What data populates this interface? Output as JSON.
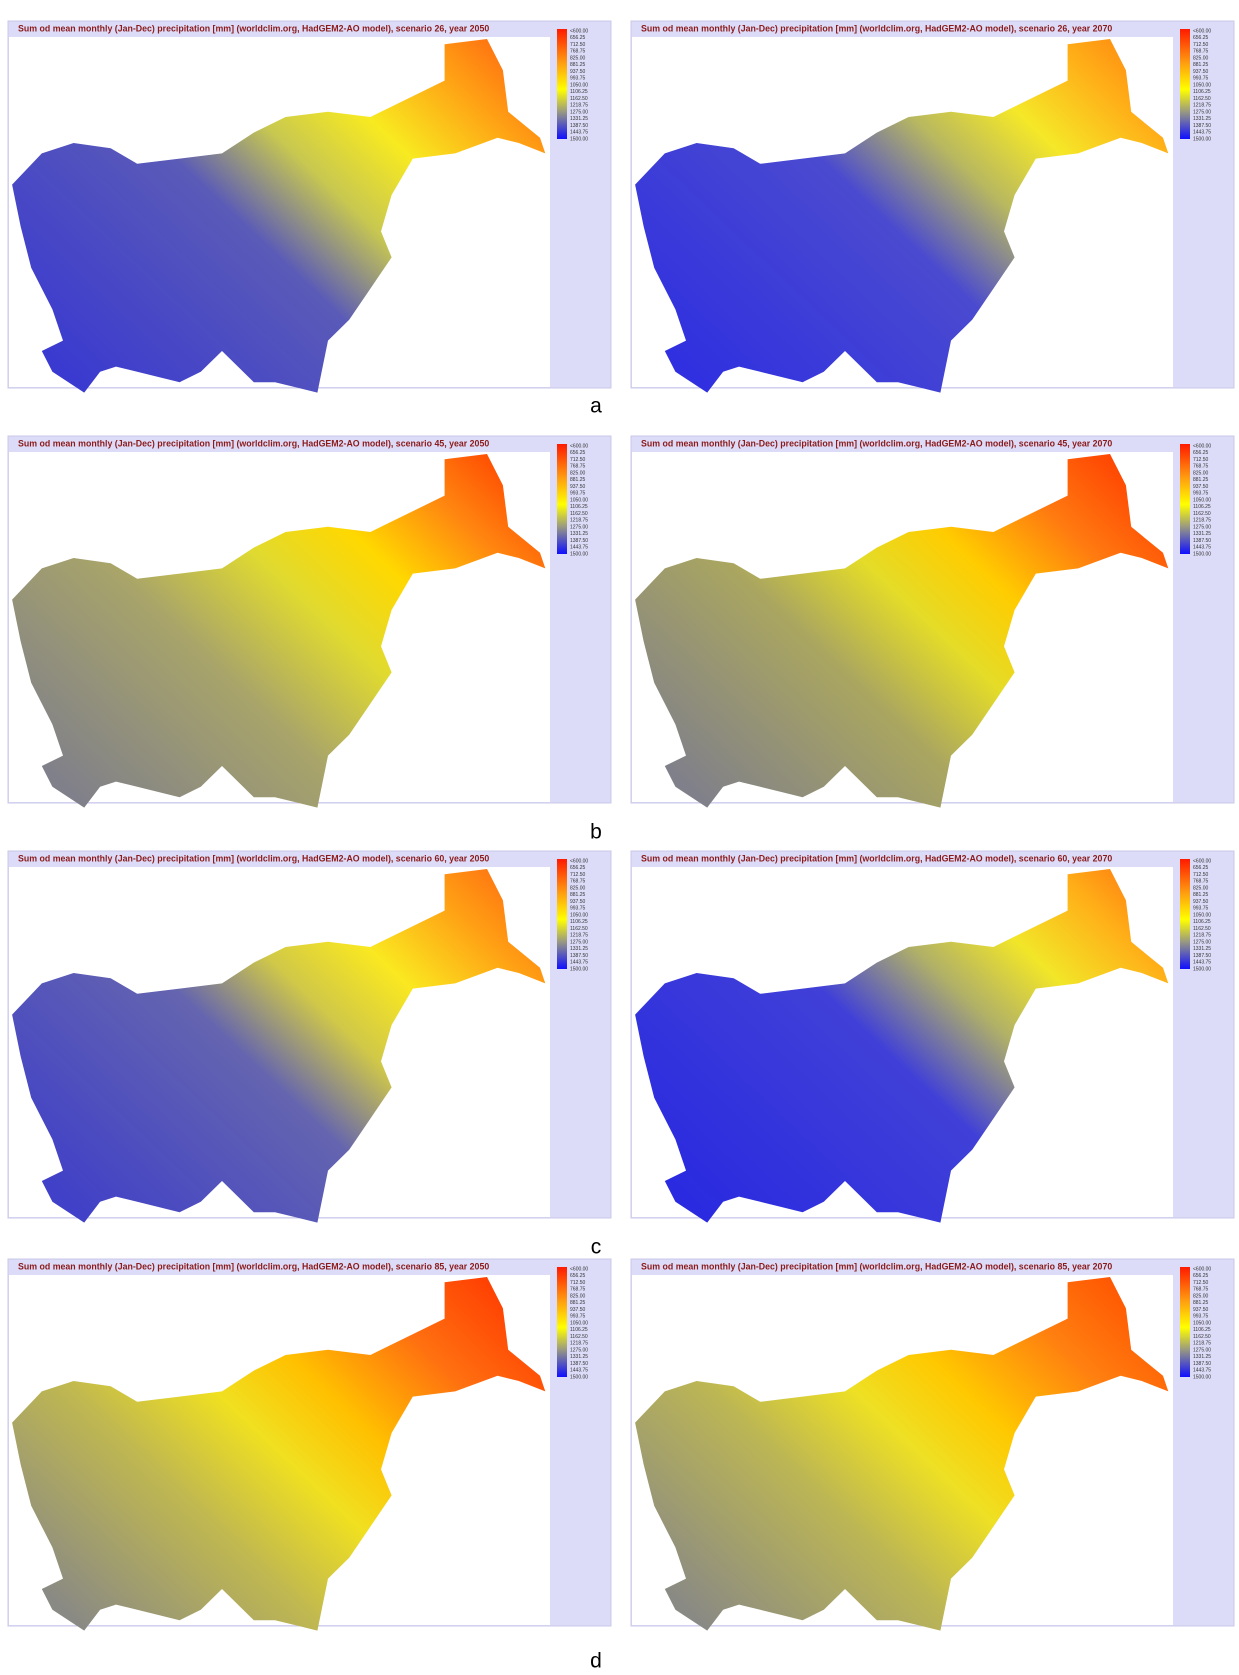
{
  "legend_labels": [
    "<600.00",
    "656.25",
    "712.50",
    "768.75",
    "825.00",
    "881.25",
    "937.50",
    "993.75",
    "1050.00",
    "1106.25",
    "1162.50",
    "1218.75",
    "1275.00",
    "1331.25",
    "1387.50",
    "1443.75",
    "1500.00"
  ],
  "panels": [
    {
      "title": "Sum od mean monthly (Jan-Dec) precipitation [mm] (worldclim.org, HadGEM2-AO model), scenario 26, year 2050"
    },
    {
      "title": "Sum od mean monthly (Jan-Dec) precipitation [mm] (worldclim.org, HadGEM2-AO model), scenario 26, year 2070"
    },
    {
      "title": "Sum od mean monthly (Jan-Dec) precipitation [mm] (worldclim.org, HadGEM2-AO model), scenario 45, year 2050"
    },
    {
      "title": "Sum od mean monthly (Jan-Dec) precipitation [mm] (worldclim.org, HadGEM2-AO model), scenario 45, year 2070"
    },
    {
      "title": "Sum od mean monthly (Jan-Dec) precipitation [mm] (worldclim.org, HadGEM2-AO model), scenario 60, year 2050"
    },
    {
      "title": "Sum od mean monthly (Jan-Dec) precipitation [mm] (worldclim.org, HadGEM2-AO model), scenario 60, year 2070"
    },
    {
      "title": "Sum od mean monthly (Jan-Dec) precipitation [mm] (worldclim.org, HadGEM2-AO model), scenario 85, year 2050"
    },
    {
      "title": "Sum od mean monthly (Jan-Dec) precipitation [mm] (worldclim.org, HadGEM2-AO model), scenario 85, year 2070"
    }
  ],
  "row_labels": [
    "a",
    "b",
    "c",
    "d"
  ]
}
